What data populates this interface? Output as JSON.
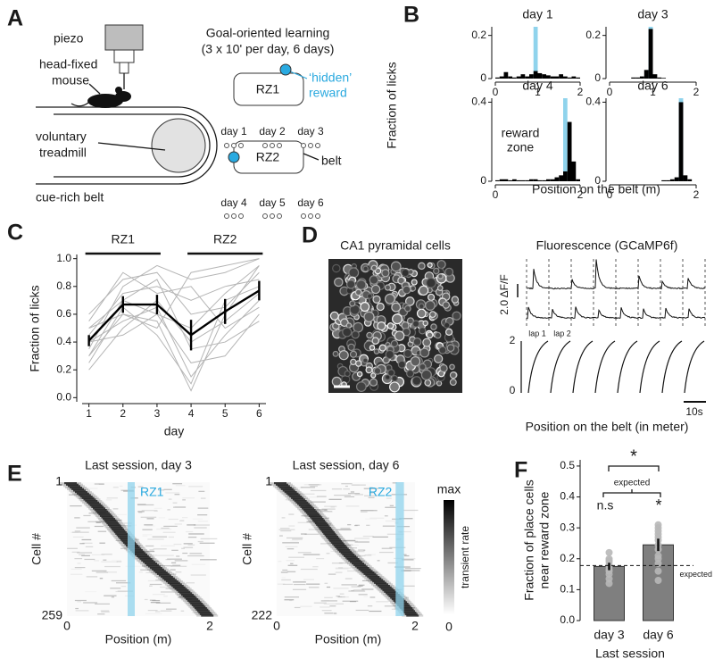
{
  "figure": {
    "panel_letters": [
      "A",
      "B",
      "C",
      "D",
      "E",
      "F"
    ]
  },
  "diagram": {
    "setup_labels": [
      "piezo",
      "head-fixed",
      "mouse",
      "voluntary",
      "treadmill",
      "cue-rich belt"
    ],
    "protocol_title": [
      "Goal-oriented learning",
      "(3 x 10' per day, 6 days)"
    ],
    "reward_zones": [
      {
        "label": "RZ1",
        "days": [
          "day 1",
          "day 2",
          "day 3"
        ]
      },
      {
        "label": "RZ2",
        "days": [
          "day 4",
          "day 5",
          "day 6"
        ]
      }
    ],
    "hidden_reward": [
      "‘hidden’",
      "reward"
    ],
    "belt": "belt"
  },
  "imaging": {
    "image_title": "CA1 pyramidal cells",
    "trace_title": "Fluorescence (GCaMP6f)",
    "dff_scale": "2.0 ΔF/F",
    "laps": [
      "lap 1",
      "lap 2"
    ],
    "position_ticks": [
      "2",
      "0"
    ],
    "time_scale": "10s",
    "xlabel": "Position on the belt (in meter)"
  },
  "chart_data": [
    {
      "type": "histogram",
      "title": "day 1",
      "ylabel": "Fraction of licks",
      "bins": [
        0,
        0.1,
        0.2,
        0.3,
        0.4,
        0.5,
        0.6,
        0.7,
        0.8,
        0.9,
        1.0,
        1.1,
        1.2,
        1.3,
        1.4,
        1.5,
        1.6,
        1.7,
        1.8,
        1.9,
        2.0
      ],
      "values": [
        0.005,
        0.01,
        0.03,
        0.01,
        0.005,
        0.01,
        0.02,
        0.01,
        0.02,
        0.035,
        0.025,
        0.02,
        0.015,
        0.01,
        0.01,
        0.02,
        0.01,
        0.005,
        0.01,
        0.005
      ],
      "color": "#000000",
      "reward_zone": [
        0.9,
        1.0
      ],
      "zone_color": "#8fd3ec",
      "xlim": [
        0,
        2
      ],
      "ylim": [
        0,
        0.24
      ],
      "xticks": [
        0,
        1,
        2
      ],
      "yticks": [
        0,
        0.2
      ]
    },
    {
      "type": "histogram",
      "title": "day 3",
      "bins": [
        0,
        0.1,
        0.2,
        0.3,
        0.4,
        0.5,
        0.6,
        0.7,
        0.8,
        0.9,
        1.0,
        1.1,
        1.2,
        1.3,
        1.4,
        1.5,
        1.6,
        1.7,
        1.8,
        1.9,
        2.0
      ],
      "values": [
        0,
        0,
        0,
        0,
        0,
        0.005,
        0.005,
        0.01,
        0.04,
        0.23,
        0.02,
        0.005,
        0.003,
        0,
        0,
        0,
        0,
        0,
        0,
        0
      ],
      "color": "#000000",
      "reward_zone": [
        0.9,
        1.0
      ],
      "zone_color": "#8fd3ec",
      "xlim": [
        0,
        2
      ],
      "ylim": [
        0,
        0.24
      ],
      "xticks": [
        0,
        1,
        2
      ],
      "yticks": [
        0,
        0.2
      ]
    },
    {
      "type": "histogram",
      "title": "day 4",
      "annotation": [
        "reward",
        "zone"
      ],
      "annotation_color": "#5bbfe6",
      "bins": [
        0,
        0.1,
        0.2,
        0.3,
        0.4,
        0.5,
        0.6,
        0.7,
        0.8,
        0.9,
        1.0,
        1.1,
        1.2,
        1.3,
        1.4,
        1.5,
        1.6,
        1.7,
        1.8,
        1.9,
        2.0
      ],
      "values": [
        0.005,
        0.01,
        0.01,
        0.005,
        0.01,
        0.005,
        0.005,
        0.005,
        0.01,
        0.01,
        0.005,
        0.005,
        0.01,
        0.01,
        0.02,
        0.03,
        0.05,
        0.3,
        0.1,
        0.01
      ],
      "color": "#000000",
      "reward_zone": [
        1.6,
        1.7
      ],
      "zone_color": "#8fd3ec",
      "xlim": [
        0,
        2
      ],
      "ylim": [
        0,
        0.42
      ],
      "xticks": [
        0,
        2
      ],
      "yticks": [
        0,
        0.4
      ]
    },
    {
      "type": "histogram",
      "title": "day 6",
      "xlabel": "Position on the belt (m)",
      "bins": [
        0,
        0.1,
        0.2,
        0.3,
        0.4,
        0.5,
        0.6,
        0.7,
        0.8,
        0.9,
        1.0,
        1.1,
        1.2,
        1.3,
        1.4,
        1.5,
        1.6,
        1.7,
        1.8,
        1.9,
        2.0
      ],
      "values": [
        0,
        0,
        0,
        0,
        0,
        0,
        0,
        0,
        0,
        0,
        0,
        0,
        0.005,
        0.005,
        0.01,
        0.02,
        0.4,
        0.03,
        0.01,
        0
      ],
      "color": "#000000",
      "reward_zone": [
        1.6,
        1.7
      ],
      "zone_color": "#8fd3ec",
      "xlim": [
        0,
        2
      ],
      "ylim": [
        0,
        0.42
      ],
      "xticks": [
        0,
        2
      ],
      "yticks": [
        0,
        0.4
      ]
    },
    {
      "type": "line",
      "ylabel": "Fraction of licks",
      "xlabel": "day",
      "x": [
        1,
        2,
        3,
        4,
        5,
        6
      ],
      "values": [
        0.41,
        0.67,
        0.67,
        0.45,
        0.62,
        0.77
      ],
      "errors": [
        0.04,
        0.06,
        0.07,
        0.11,
        0.09,
        0.07
      ],
      "color": "#000000",
      "individual_color": "#b5b5b5",
      "individual": [
        [
          0.4,
          0.55,
          0.65,
          0.15,
          0.45,
          0.7
        ],
        [
          0.35,
          0.8,
          0.95,
          0.85,
          0.9,
          1.0
        ],
        [
          0.3,
          0.6,
          0.55,
          0.05,
          0.6,
          0.95
        ],
        [
          0.45,
          0.75,
          0.8,
          0.7,
          0.8,
          0.85
        ],
        [
          0.5,
          0.7,
          0.6,
          0.25,
          0.3,
          0.6
        ],
        [
          0.2,
          0.5,
          0.7,
          0.4,
          0.55,
          0.75
        ],
        [
          0.6,
          0.85,
          0.9,
          0.6,
          0.65,
          0.9
        ],
        [
          0.25,
          0.65,
          0.45,
          0.1,
          0.7,
          0.8
        ],
        [
          0.55,
          0.9,
          0.75,
          0.8,
          0.5,
          0.65
        ],
        [
          0.4,
          0.45,
          0.6,
          0.5,
          0.75,
          0.95
        ],
        [
          0.3,
          0.7,
          0.85,
          0.35,
          0.4,
          0.55
        ],
        [
          0.5,
          0.6,
          0.5,
          0.9,
          0.95,
          1.0
        ]
      ],
      "periods": [
        {
          "label": "RZ1",
          "days": [
            1,
            3
          ]
        },
        {
          "label": "RZ2",
          "days": [
            4,
            6
          ]
        }
      ],
      "xlim": [
        0.8,
        6.2
      ],
      "ylim": [
        -0.03,
        1.03
      ],
      "xticks": [
        1,
        2,
        3,
        4,
        5,
        6
      ],
      "yticks": [
        {
          "value": 0,
          "label": "0.0"
        },
        {
          "value": 0.2,
          "label": "0.2"
        },
        {
          "value": 0.4,
          "label": "0.4"
        },
        {
          "value": 0.6,
          "label": "0.6"
        },
        {
          "value": 0.8,
          "label": "0.8"
        },
        {
          "value": 1,
          "label": "1.0"
        }
      ]
    },
    {
      "type": "heatmap",
      "title": "Last session, day 3",
      "zone_label": "RZ1",
      "ylabel": "Cell #",
      "xlabel": "Position (m)",
      "reward_zone": [
        0.85,
        0.95
      ],
      "zone_color": "#8fd3ec",
      "xlim": [
        0,
        2
      ],
      "xticks": [
        0,
        2
      ],
      "ylim": [
        1,
        259
      ],
      "yticks": [
        1,
        259
      ]
    },
    {
      "type": "heatmap",
      "title": "Last session, day 6",
      "zone_label": "RZ2",
      "ylabel": "Cell #",
      "xlabel": "Position (m)",
      "reward_zone": [
        1.72,
        1.84
      ],
      "zone_color": "#8fd3ec",
      "xlim": [
        0,
        2
      ],
      "xticks": [
        0,
        2
      ],
      "ylim": [
        1,
        222
      ],
      "yticks": [
        1,
        222
      ],
      "colorbar": {
        "ticks": [
          "max",
          "0"
        ],
        "label": "transient rate"
      }
    },
    {
      "type": "bar",
      "categories": [
        "day 3",
        "day 6"
      ],
      "values": [
        0.175,
        0.245
      ],
      "errors": [
        0.012,
        0.02
      ],
      "points": [
        [
          0.22,
          0.2,
          0.195,
          0.19,
          0.18,
          0.175,
          0.165,
          0.16,
          0.15,
          0.135,
          0.12
        ],
        [
          0.31,
          0.3,
          0.29,
          0.28,
          0.27,
          0.26,
          0.245,
          0.23,
          0.21,
          0.2,
          0.185,
          0.16,
          0.13
        ]
      ],
      "color": "#7f7f7f",
      "point_color": "#b8b8b8",
      "ylabel": [
        "Fraction of place cells",
        "near reward zone"
      ],
      "xlabel": "Last session",
      "expected": 0.178,
      "expected_label": "expected",
      "annotations": [
        "*",
        "expected",
        "n.s",
        "*"
      ],
      "ylim": [
        0,
        0.52
      ],
      "yticks": [
        {
          "value": 0,
          "label": "0.0"
        },
        {
          "value": 0.1,
          "label": "0.1"
        },
        {
          "value": 0.2,
          "label": "0.2"
        },
        {
          "value": 0.3,
          "label": "0.3"
        },
        {
          "value": 0.4,
          "label": "0.4"
        },
        {
          "value": 0.5,
          "label": "0.5"
        }
      ]
    }
  ]
}
